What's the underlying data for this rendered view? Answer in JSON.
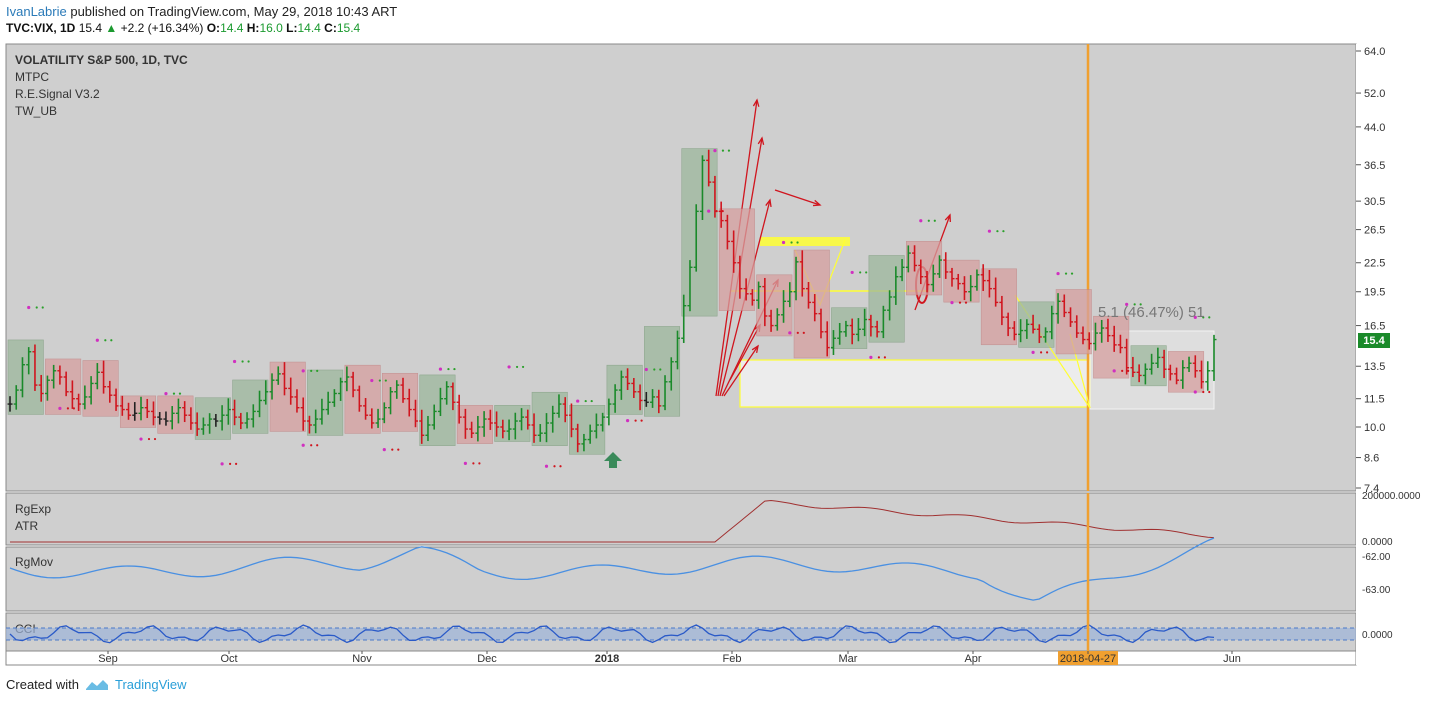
{
  "header": {
    "author": "IvanLabrie",
    "published_text": "published on TradingView.com, May 29, 2018 10:43 ART",
    "symbol": "TVC:VIX, 1D",
    "last": "15.4",
    "change": "+2.2 (+16.34%)",
    "o_label": "O:",
    "o_value": "14.4",
    "h_label": "H:",
    "h_value": "16.0",
    "l_label": "L:",
    "l_value": "14.4",
    "c_label": "C:",
    "c_value": "15.4"
  },
  "legend": {
    "title": "VOLATILITY S&P 500, 1D, TVC",
    "indicators": [
      "MTPC",
      "R.E.Signal V3.2",
      "TW_UB"
    ]
  },
  "panes": {
    "rgexp_label": "RgExp",
    "atr_label": "ATR",
    "rgmov_label": "RgMov",
    "cci_label": "CCI"
  },
  "annotations": {
    "measure_text": "5.1 (46.47%) 51",
    "current_price_badge": "15.4",
    "date_marker": "2018-04-27"
  },
  "footer": {
    "created_with": "Created with",
    "brand": "TradingView"
  },
  "colors": {
    "bull": "#1a8a2a",
    "bear": "#d0151e",
    "neutral": "#222222",
    "grid_bg": "#cfcfcf",
    "highlight": "#ffff33",
    "vertical_line": "#f0a030",
    "rgmov_line": "#4a90e2",
    "atr_line": "#a03030"
  },
  "chart_data": {
    "type": "candlestick",
    "title": "VOLATILITY S&P 500, 1D, TVC",
    "y_ticks": [
      "64.0",
      "52.0",
      "44.0",
      "36.5",
      "30.5",
      "26.5",
      "22.5",
      "19.5",
      "16.5",
      "13.5",
      "11.5",
      "10.0",
      "8.6",
      "7.4"
    ],
    "y_scale": "log",
    "ylim": [
      7.4,
      64.0
    ],
    "x_labels": [
      "Sep",
      "Oct",
      "Nov",
      "Dec",
      "2018",
      "Feb",
      "Mar",
      "Apr",
      "2018-04-27",
      "Jun"
    ],
    "closes": [
      11.2,
      12.0,
      13.6,
      14.5,
      12.3,
      11.8,
      12.6,
      13.2,
      12.8,
      11.9,
      11.5,
      11.2,
      11.6,
      12.4,
      13.1,
      12.2,
      11.7,
      11.1,
      10.9,
      10.6,
      10.7,
      11.0,
      10.8,
      10.5,
      10.4,
      10.3,
      10.7,
      11.0,
      10.6,
      10.2,
      9.9,
      10.1,
      10.4,
      10.3,
      10.6,
      10.9,
      10.5,
      10.2,
      10.4,
      10.8,
      11.4,
      11.9,
      12.6,
      13.0,
      12.1,
      11.6,
      11.0,
      10.3,
      10.1,
      10.4,
      10.9,
      11.3,
      11.8,
      12.5,
      12.8,
      12.0,
      11.1,
      10.6,
      10.2,
      10.4,
      11.0,
      11.9,
      12.3,
      11.5,
      10.9,
      10.3,
      9.6,
      10.1,
      10.8,
      11.5,
      12.2,
      11.3,
      10.5,
      9.9,
      9.7,
      10.0,
      10.4,
      10.2,
      10.0,
      9.8,
      9.9,
      10.3,
      10.5,
      10.1,
      9.6,
      9.7,
      10.2,
      10.7,
      11.2,
      10.6,
      9.9,
      9.2,
      9.4,
      9.8,
      10.1,
      10.5,
      11.2,
      12.0,
      12.8,
      12.4,
      11.9,
      11.4,
      11.3,
      11.6,
      11.1,
      12.5,
      13.8,
      15.5,
      18.2,
      22.0,
      29.0,
      37.3,
      33.5,
      29.0,
      27.7,
      25.0,
      22.5,
      19.8,
      19.3,
      18.7,
      20.0,
      17.3,
      16.5,
      17.4,
      18.6,
      19.5,
      22.6,
      19.8,
      18.5,
      17.5,
      16.0,
      14.8,
      15.5,
      16.0,
      16.5,
      15.8,
      16.2,
      17.0,
      16.4,
      16.0,
      17.8,
      19.0,
      21.0,
      22.0,
      23.6,
      22.2,
      21.0,
      20.2,
      21.3,
      22.8,
      21.5,
      20.8,
      20.3,
      19.5,
      20.0,
      21.2,
      20.6,
      19.8,
      18.5,
      17.2,
      16.3,
      15.8,
      16.1,
      16.6,
      16.2,
      15.6,
      16.0,
      17.5,
      18.6,
      17.6,
      16.8,
      15.9,
      15.4,
      15.1,
      15.9,
      16.3,
      15.7,
      15.0,
      14.8,
      13.4,
      13.1,
      12.9,
      13.3,
      13.7,
      14.1,
      13.3,
      13.0,
      12.6,
      13.4,
      13.7,
      13.2,
      12.5,
      13.2,
      15.4
    ]
  }
}
